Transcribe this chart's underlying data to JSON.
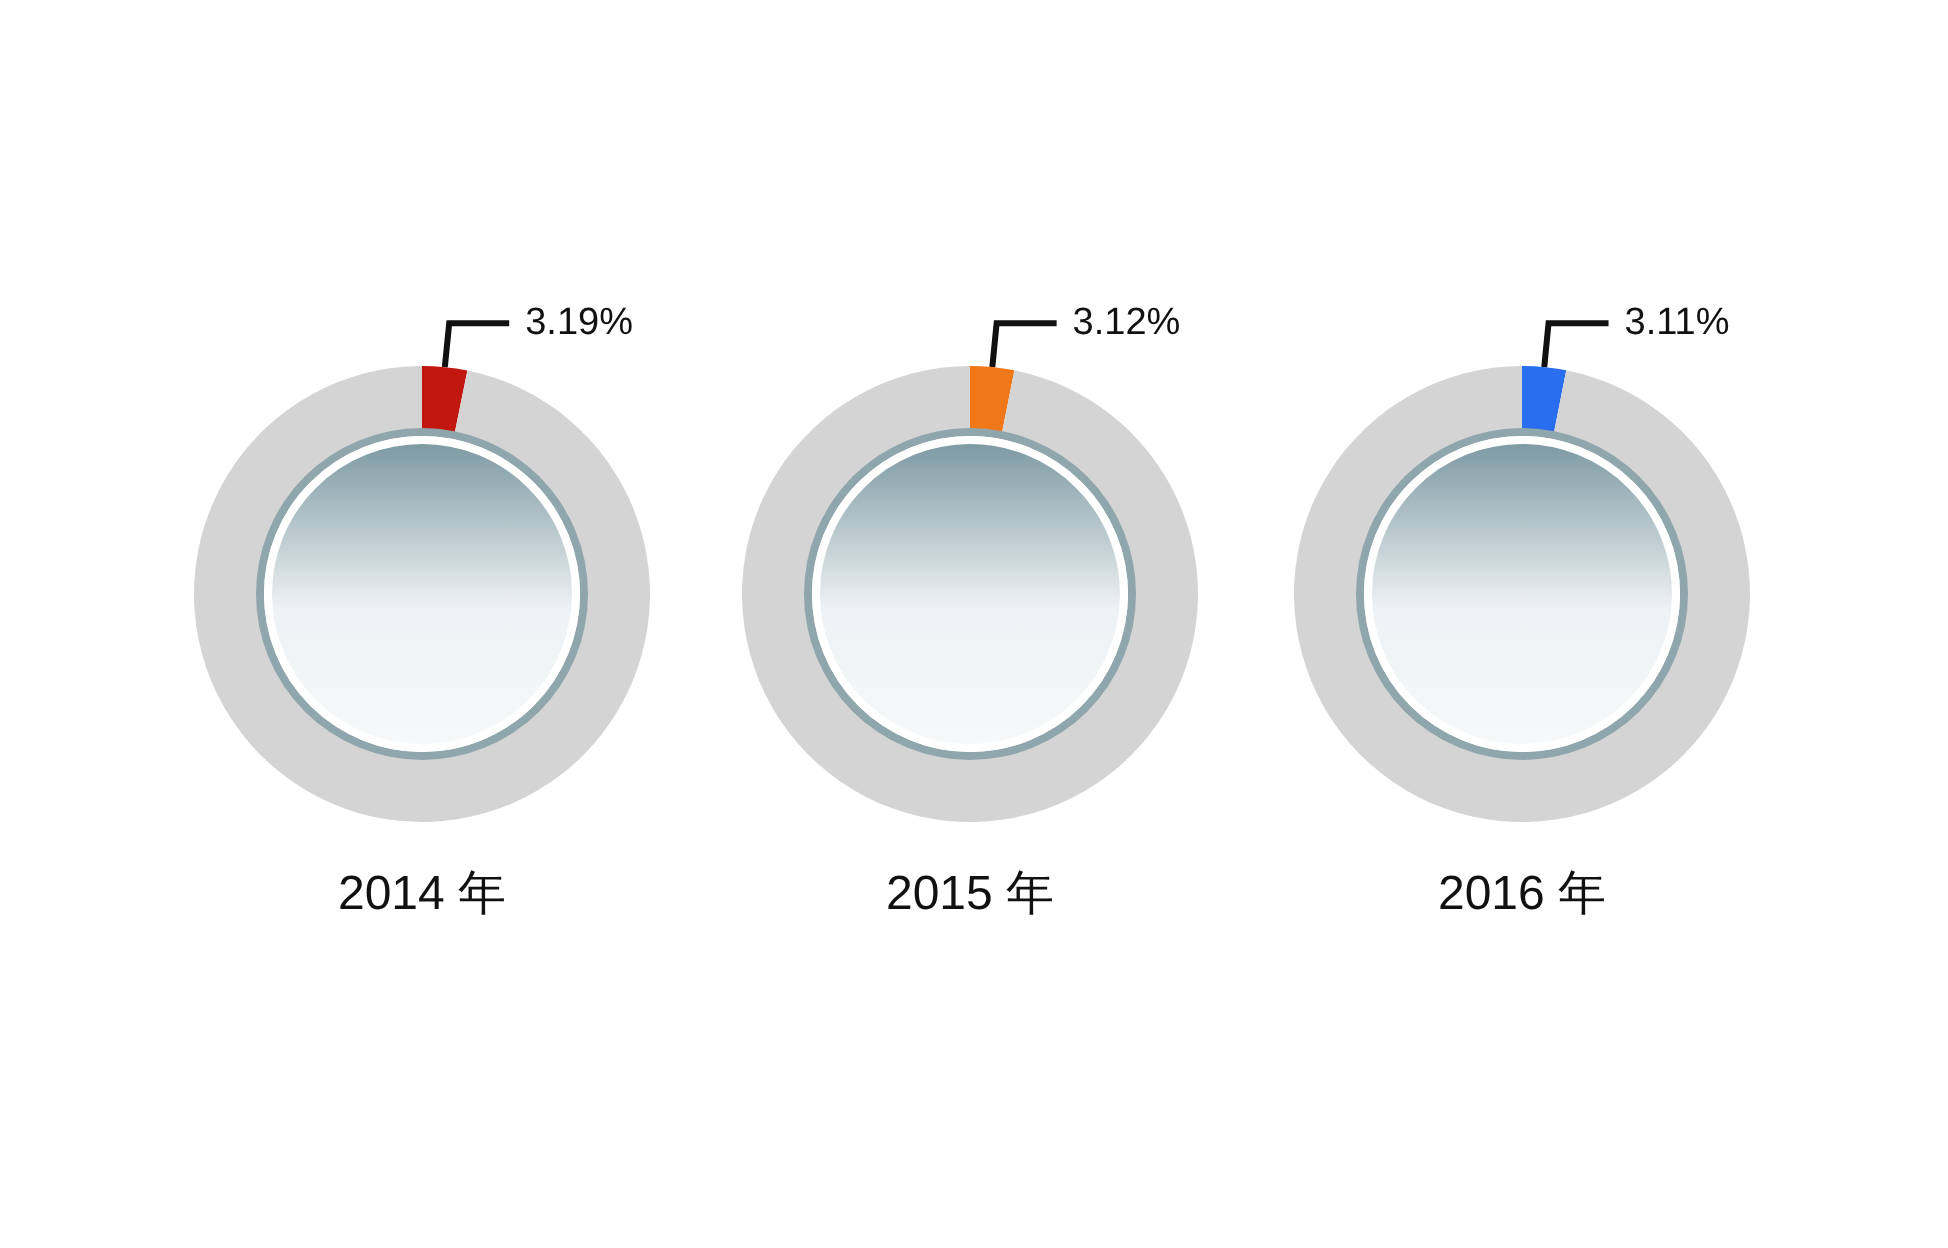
{
  "chart_data": [
    {
      "type": "donut",
      "title": "2014 年",
      "categories": [
        null,
        null
      ],
      "values": [
        3.19,
        96.81
      ],
      "colors": [
        "#c1170f",
        "#d4d4d4"
      ],
      "value_labels": [
        "3.19%",
        null
      ]
    },
    {
      "type": "donut",
      "title": "2015 年",
      "categories": [
        null,
        null
      ],
      "values": [
        3.12,
        96.88
      ],
      "colors": [
        "#f07818",
        "#d4d4d4"
      ],
      "value_labels": [
        "3.12%",
        null
      ]
    },
    {
      "type": "donut",
      "title": "2016 年",
      "categories": [
        null,
        null
      ],
      "values": [
        3.11,
        96.89
      ],
      "colors": [
        "#2a6ef0",
        "#d4d4d4"
      ],
      "value_labels": [
        "3.11%",
        null
      ]
    }
  ]
}
